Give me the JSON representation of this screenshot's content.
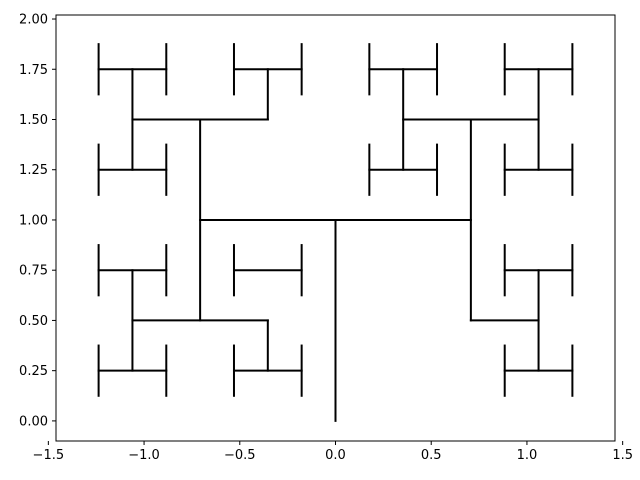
{
  "chart_data": {
    "type": "line",
    "title": "",
    "xlabel": "",
    "ylabel": "",
    "xlim": [
      -1.46,
      1.46
    ],
    "ylim": [
      -0.1,
      2.02
    ],
    "xticks": [
      {
        "value": -1.5,
        "label": "−1.5"
      },
      {
        "value": -1.0,
        "label": "−1.0"
      },
      {
        "value": -0.5,
        "label": "−0.5"
      },
      {
        "value": 0.0,
        "label": "0.0"
      },
      {
        "value": 0.5,
        "label": "0.5"
      },
      {
        "value": 1.0,
        "label": "1.0"
      },
      {
        "value": 1.5,
        "label": "1.5"
      }
    ],
    "yticks": [
      {
        "value": 0.0,
        "label": "0.00"
      },
      {
        "value": 0.25,
        "label": "0.25"
      },
      {
        "value": 0.5,
        "label": "0.50"
      },
      {
        "value": 0.75,
        "label": "0.75"
      },
      {
        "value": 1.0,
        "label": "1.00"
      },
      {
        "value": 1.25,
        "label": "1.25"
      },
      {
        "value": 1.5,
        "label": "1.50"
      },
      {
        "value": 1.75,
        "label": "1.75"
      },
      {
        "value": 2.0,
        "label": "2.00"
      }
    ],
    "grid": false,
    "series": [
      {
        "color": "#000000",
        "segments": [
          [
            0.0,
            0.0,
            0.0,
            1.0
          ],
          [
            -0.7071,
            1.0,
            0.7071,
            1.0
          ],
          [
            -0.7071,
            0.5,
            -0.7071,
            1.5
          ],
          [
            -1.0607,
            0.5,
            -0.3536,
            0.5
          ],
          [
            -1.0607,
            1.5,
            -0.3536,
            1.5
          ],
          [
            -1.0607,
            0.25,
            -1.0607,
            0.75
          ],
          [
            -1.0607,
            1.25,
            -1.0607,
            1.75
          ],
          [
            -0.3536,
            1.5,
            -0.3536,
            1.75
          ],
          [
            -0.3536,
            0.25,
            -0.3536,
            0.5
          ],
          [
            0.7071,
            0.5,
            0.7071,
            1.5
          ],
          [
            0.3536,
            1.5,
            1.0607,
            1.5
          ],
          [
            1.0607,
            0.5,
            0.7071,
            0.5
          ],
          [
            0.3536,
            1.25,
            0.3536,
            1.75
          ],
          [
            1.0607,
            1.25,
            1.0607,
            1.75
          ],
          [
            1.0607,
            0.25,
            1.0607,
            0.75
          ],
          [
            -1.2374,
            1.75,
            -0.8839,
            1.75
          ],
          [
            -1.2374,
            1.25,
            -0.8839,
            1.25
          ],
          [
            -1.2374,
            0.75,
            -0.8839,
            0.75
          ],
          [
            -1.2374,
            0.25,
            -0.8839,
            0.25
          ],
          [
            -0.5303,
            1.75,
            -0.1768,
            1.75
          ],
          [
            -0.5303,
            0.75,
            -0.1768,
            0.75
          ],
          [
            -0.5303,
            0.25,
            -0.1768,
            0.25
          ],
          [
            0.1768,
            1.75,
            0.5303,
            1.75
          ],
          [
            0.1768,
            1.25,
            0.5303,
            1.25
          ],
          [
            0.8839,
            1.75,
            1.2374,
            1.75
          ],
          [
            0.8839,
            1.25,
            1.2374,
            1.25
          ],
          [
            0.8839,
            0.75,
            1.2374,
            0.75
          ],
          [
            0.8839,
            0.25,
            1.2374,
            0.25
          ],
          [
            -1.2374,
            1.625,
            -1.2374,
            1.875
          ],
          [
            -0.8839,
            1.625,
            -0.8839,
            1.875
          ],
          [
            -1.2374,
            1.125,
            -1.2374,
            1.375
          ],
          [
            -0.8839,
            1.125,
            -0.8839,
            1.375
          ],
          [
            -1.2374,
            0.625,
            -1.2374,
            0.875
          ],
          [
            -0.8839,
            0.625,
            -0.8839,
            0.875
          ],
          [
            -1.2374,
            0.125,
            -1.2374,
            0.375
          ],
          [
            -0.8839,
            0.125,
            -0.8839,
            0.375
          ],
          [
            -0.5303,
            1.625,
            -0.5303,
            1.875
          ],
          [
            -0.1768,
            1.625,
            -0.1768,
            1.875
          ],
          [
            -0.5303,
            0.625,
            -0.5303,
            0.875
          ],
          [
            -0.1768,
            0.625,
            -0.1768,
            0.875
          ],
          [
            -0.5303,
            0.125,
            -0.5303,
            0.375
          ],
          [
            -0.1768,
            0.125,
            -0.1768,
            0.375
          ],
          [
            0.1768,
            1.625,
            0.1768,
            1.875
          ],
          [
            0.5303,
            1.625,
            0.5303,
            1.875
          ],
          [
            0.1768,
            1.125,
            0.1768,
            1.375
          ],
          [
            0.5303,
            1.125,
            0.5303,
            1.375
          ],
          [
            0.8839,
            1.625,
            0.8839,
            1.875
          ],
          [
            1.2374,
            1.625,
            1.2374,
            1.875
          ],
          [
            0.8839,
            1.125,
            0.8839,
            1.375
          ],
          [
            1.2374,
            1.125,
            1.2374,
            1.375
          ],
          [
            0.8839,
            0.625,
            0.8839,
            0.875
          ],
          [
            1.2374,
            0.625,
            1.2374,
            0.875
          ],
          [
            0.8839,
            0.125,
            0.8839,
            0.375
          ],
          [
            1.2374,
            0.125,
            1.2374,
            0.375
          ]
        ]
      }
    ]
  }
}
